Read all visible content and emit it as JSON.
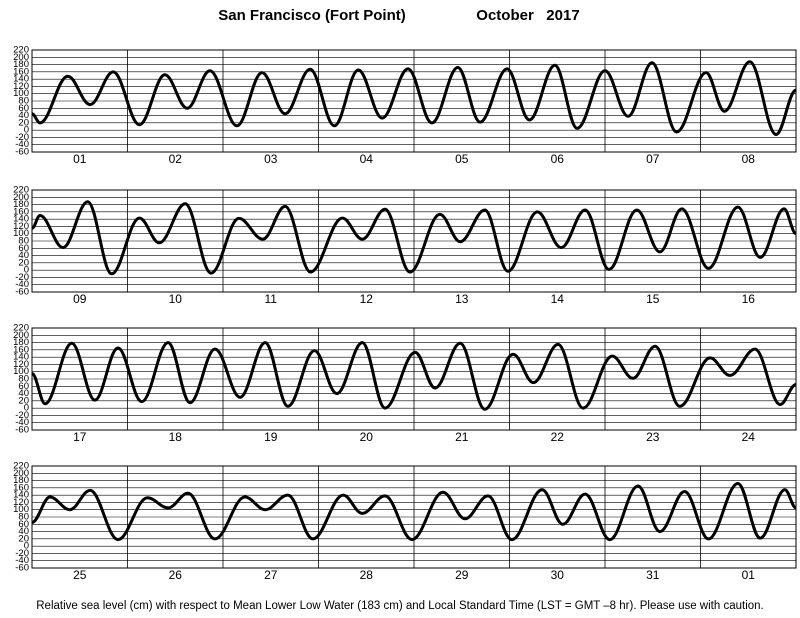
{
  "title": "San Francisco (Fort Point)",
  "date": "October   2017",
  "note": "Relative sea level (cm) with respect to Mean Lower Low Water (183 cm) and Local Standard Time (LST = GMT –8 hr). Please use with caution.",
  "chart_data": [
    {
      "type": "line",
      "categories": [
        "01",
        "02",
        "03",
        "04",
        "05",
        "06",
        "07",
        "08"
      ],
      "x": [
        0,
        2,
        9,
        14.6,
        20.4,
        27,
        33.4,
        39,
        44.7,
        51.5,
        57.8,
        63.6,
        69.9,
        76,
        82,
        88,
        94.5,
        100.5,
        107,
        112.6,
        119.4,
        125,
        131.4,
        137,
        144,
        149.8,
        155.8,
        162,
        169.4,
        174,
        180.4,
        187,
        192
      ],
      "series": [
        {
          "color": "#000000",
          "values": [
            45,
            20,
            148,
            70,
            160,
            15,
            152,
            60,
            163,
            12,
            158,
            45,
            167,
            12,
            165,
            33,
            168,
            20,
            172,
            22,
            168,
            28,
            178,
            5,
            163,
            38,
            185,
            -5,
            158,
            52,
            188,
            -12,
            110
          ]
        }
      ],
      "xlim": [
        0,
        192
      ],
      "xticks": [
        0,
        24,
        48,
        72,
        96,
        120,
        144,
        168,
        192
      ],
      "ylim": [
        -60,
        220
      ],
      "yticks": [
        220,
        200,
        180,
        160,
        140,
        120,
        100,
        80,
        60,
        40,
        20,
        0,
        -20,
        -40,
        -60
      ],
      "grid": true
    },
    {
      "type": "line",
      "categories": [
        "09",
        "10",
        "11",
        "12",
        "13",
        "14",
        "15",
        "16"
      ],
      "x": [
        0,
        2,
        7.8,
        14,
        20,
        27,
        32,
        38.5,
        45,
        52,
        58,
        63.6,
        70,
        78,
        83,
        88.7,
        95,
        102.5,
        107.6,
        113.8,
        119.6,
        127,
        133,
        139,
        145,
        152,
        157.8,
        163.3,
        170,
        177.4,
        183,
        189,
        192
      ],
      "series": [
        {
          "color": "#000000",
          "values": [
            115,
            150,
            62,
            188,
            -10,
            143,
            75,
            182,
            -8,
            142,
            85,
            175,
            -5,
            143,
            85,
            167,
            -5,
            153,
            78,
            165,
            -3,
            160,
            62,
            165,
            2,
            165,
            50,
            168,
            5,
            173,
            35,
            168,
            100
          ]
        }
      ],
      "xlim": [
        0,
        192
      ],
      "xticks": [
        0,
        24,
        48,
        72,
        96,
        120,
        144,
        168,
        192
      ],
      "ylim": [
        -60,
        220
      ],
      "yticks": [
        220,
        200,
        180,
        160,
        140,
        120,
        100,
        80,
        60,
        40,
        20,
        0,
        -20,
        -40,
        -60
      ],
      "grid": true
    },
    {
      "type": "line",
      "categories": [
        "17",
        "18",
        "19",
        "20",
        "21",
        "22",
        "23",
        "24"
      ],
      "x": [
        0,
        3.3,
        10,
        15.8,
        21.6,
        27.6,
        34.2,
        39.7,
        46,
        52.3,
        58.6,
        64.3,
        71,
        76.6,
        83,
        88.7,
        96.3,
        101.3,
        107.6,
        113.8,
        120.9,
        126,
        132.2,
        138.5,
        145.8,
        151,
        156.6,
        162.8,
        170.4,
        175.4,
        181.7,
        188,
        192
      ],
      "series": [
        {
          "color": "#000000",
          "values": [
            95,
            12,
            178,
            22,
            165,
            18,
            180,
            15,
            162,
            30,
            180,
            5,
            158,
            40,
            180,
            0,
            153,
            55,
            178,
            -3,
            148,
            70,
            175,
            0,
            143,
            82,
            170,
            5,
            138,
            90,
            162,
            10,
            65
          ]
        }
      ],
      "xlim": [
        0,
        192
      ],
      "xticks": [
        0,
        24,
        48,
        72,
        96,
        120,
        144,
        168,
        192
      ],
      "ylim": [
        -60,
        220
      ],
      "yticks": [
        220,
        200,
        180,
        160,
        140,
        120,
        100,
        80,
        60,
        40,
        20,
        0,
        -20,
        -40,
        -60
      ],
      "grid": true
    },
    {
      "type": "line",
      "categories": [
        "25",
        "26",
        "27",
        "28",
        "29",
        "30",
        "31",
        "01"
      ],
      "x": [
        0,
        4.5,
        9.5,
        14.6,
        21.6,
        29,
        34.2,
        39.2,
        46,
        53.5,
        58.6,
        64.3,
        70.6,
        78.2,
        83,
        88.7,
        95.5,
        103.3,
        108.8,
        114.6,
        120.6,
        128.2,
        133.4,
        139,
        145.2,
        152.3,
        157.8,
        164,
        170,
        177.4,
        183,
        189.2,
        192
      ],
      "series": [
        {
          "color": "#000000",
          "values": [
            65,
            135,
            100,
            153,
            18,
            133,
            105,
            145,
            20,
            135,
            100,
            140,
            20,
            140,
            90,
            138,
            18,
            148,
            75,
            138,
            18,
            155,
            60,
            143,
            18,
            165,
            40,
            150,
            20,
            172,
            22,
            155,
            105
          ]
        }
      ],
      "xlim": [
        0,
        192
      ],
      "xticks": [
        0,
        24,
        48,
        72,
        96,
        120,
        144,
        168,
        192
      ],
      "ylim": [
        -60,
        220
      ],
      "yticks": [
        220,
        200,
        180,
        160,
        140,
        120,
        100,
        80,
        60,
        40,
        20,
        0,
        -20,
        -40,
        -60
      ],
      "grid": true
    }
  ]
}
